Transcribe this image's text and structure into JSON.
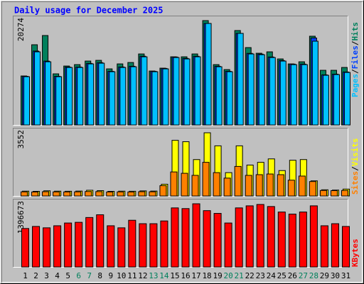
{
  "chart_data": [
    {
      "type": "bar",
      "title": "Daily usage for December 2025",
      "legend_separator": "/",
      "ylim": [
        0,
        20274
      ],
      "yticks": [
        20274
      ],
      "series": [
        {
          "name": "Hits",
          "color": "#00805c",
          "values": [
            9515,
            15583,
            17375,
            9929,
            11446,
            11722,
            12411,
            12549,
            10894,
            11859,
            12135,
            13790,
            10480,
            11032,
            13238,
            13238,
            13790,
            20274,
            11722,
            10756,
            18341,
            15031,
            13928,
            14204,
            12825,
            11859,
            12273,
            17238,
            10618,
            10618,
            11170
          ]
        },
        {
          "name": "Files",
          "color": "#0040ff",
          "values": [
            9450,
            14350,
            12400,
            9450,
            11250,
            11250,
            11950,
            12100,
            10420,
            11260,
            11400,
            13350,
            10420,
            10980,
            13200,
            12930,
            13340,
            19720,
            11400,
            10420,
            17789,
            13900,
            13760,
            13200,
            12510,
            11820,
            11820,
            16900,
            9730,
            9870,
            10290
          ]
        },
        {
          "name": "Pages",
          "color": "#00c0ff",
          "values": [
            9377,
            14204,
            12273,
            9377,
            11170,
            11170,
            11859,
            11997,
            10343,
            11170,
            11308,
            13238,
            10343,
            10894,
            13101,
            12825,
            13238,
            19720,
            11308,
            10343,
            17789,
            13790,
            13652,
            13101,
            12411,
            11722,
            11722,
            16272,
            9653,
            9791,
            10205
          ]
        }
      ]
    },
    {
      "type": "bar",
      "legend_separator": "/",
      "ylim": [
        0,
        3552
      ],
      "yticks": [
        3552
      ],
      "series": [
        {
          "name": "Visits",
          "color": "#ffff00",
          "values": [
            270,
            260,
            290,
            270,
            265,
            275,
            320,
            300,
            260,
            270,
            265,
            285,
            275,
            660,
            3127,
            3050,
            2046,
            3552,
            2818,
            1312,
            2818,
            1737,
            1891,
            2084,
            1428,
            2007,
            2046,
            849,
            347,
            330,
            386
          ]
        },
        {
          "name": "Sites",
          "color": "#ff8000",
          "values": [
            232,
            225,
            240,
            230,
            228,
            232,
            250,
            245,
            225,
            230,
            226,
            240,
            236,
            580,
            1351,
            1274,
            1158,
            1891,
            1312,
            1004,
            1660,
            1158,
            1197,
            1235,
            1197,
            888,
            1119,
            811,
            309,
            300,
            309
          ]
        }
      ]
    },
    {
      "type": "bar",
      "ylim": [
        0,
        1396673
      ],
      "yticks": [
        1396673
      ],
      "categories": [
        "1",
        "2",
        "3",
        "4",
        "5",
        "6",
        "7",
        "8",
        "9",
        "10",
        "11",
        "12",
        "13",
        "14",
        "15",
        "16",
        "17",
        "18",
        "19",
        "20",
        "21",
        "22",
        "23",
        "24",
        "25",
        "26",
        "27",
        "28",
        "29",
        "30",
        "31"
      ],
      "category_colors": [
        "#000000",
        "#000000",
        "#000000",
        "#000000",
        "#000000",
        "#00805c",
        "#00805c",
        "#000000",
        "#000000",
        "#000000",
        "#000000",
        "#000000",
        "#00805c",
        "#00805c",
        "#000000",
        "#000000",
        "#000000",
        "#000000",
        "#000000",
        "#00805c",
        "#00805c",
        "#000000",
        "#000000",
        "#000000",
        "#000000",
        "#000000",
        "#00805c",
        "#00805c",
        "#000000",
        "#000000",
        "#000000"
      ],
      "series": [
        {
          "name": "KBytes",
          "color": "#ff0000",
          "values": [
            850136,
            895679,
            865317,
            910860,
            971584,
            986765,
            1093032,
            1153756,
            910860,
            865317,
            1032308,
            956403,
            956403,
            1017127,
            1305566,
            1290385,
            1396673,
            1244842,
            1184118,
            971584,
            1305566,
            1351109,
            1381471,
            1335928,
            1214480,
            1168937,
            1214480,
            1351109,
            910860,
            956403,
            895679
          ]
        }
      ]
    }
  ]
}
